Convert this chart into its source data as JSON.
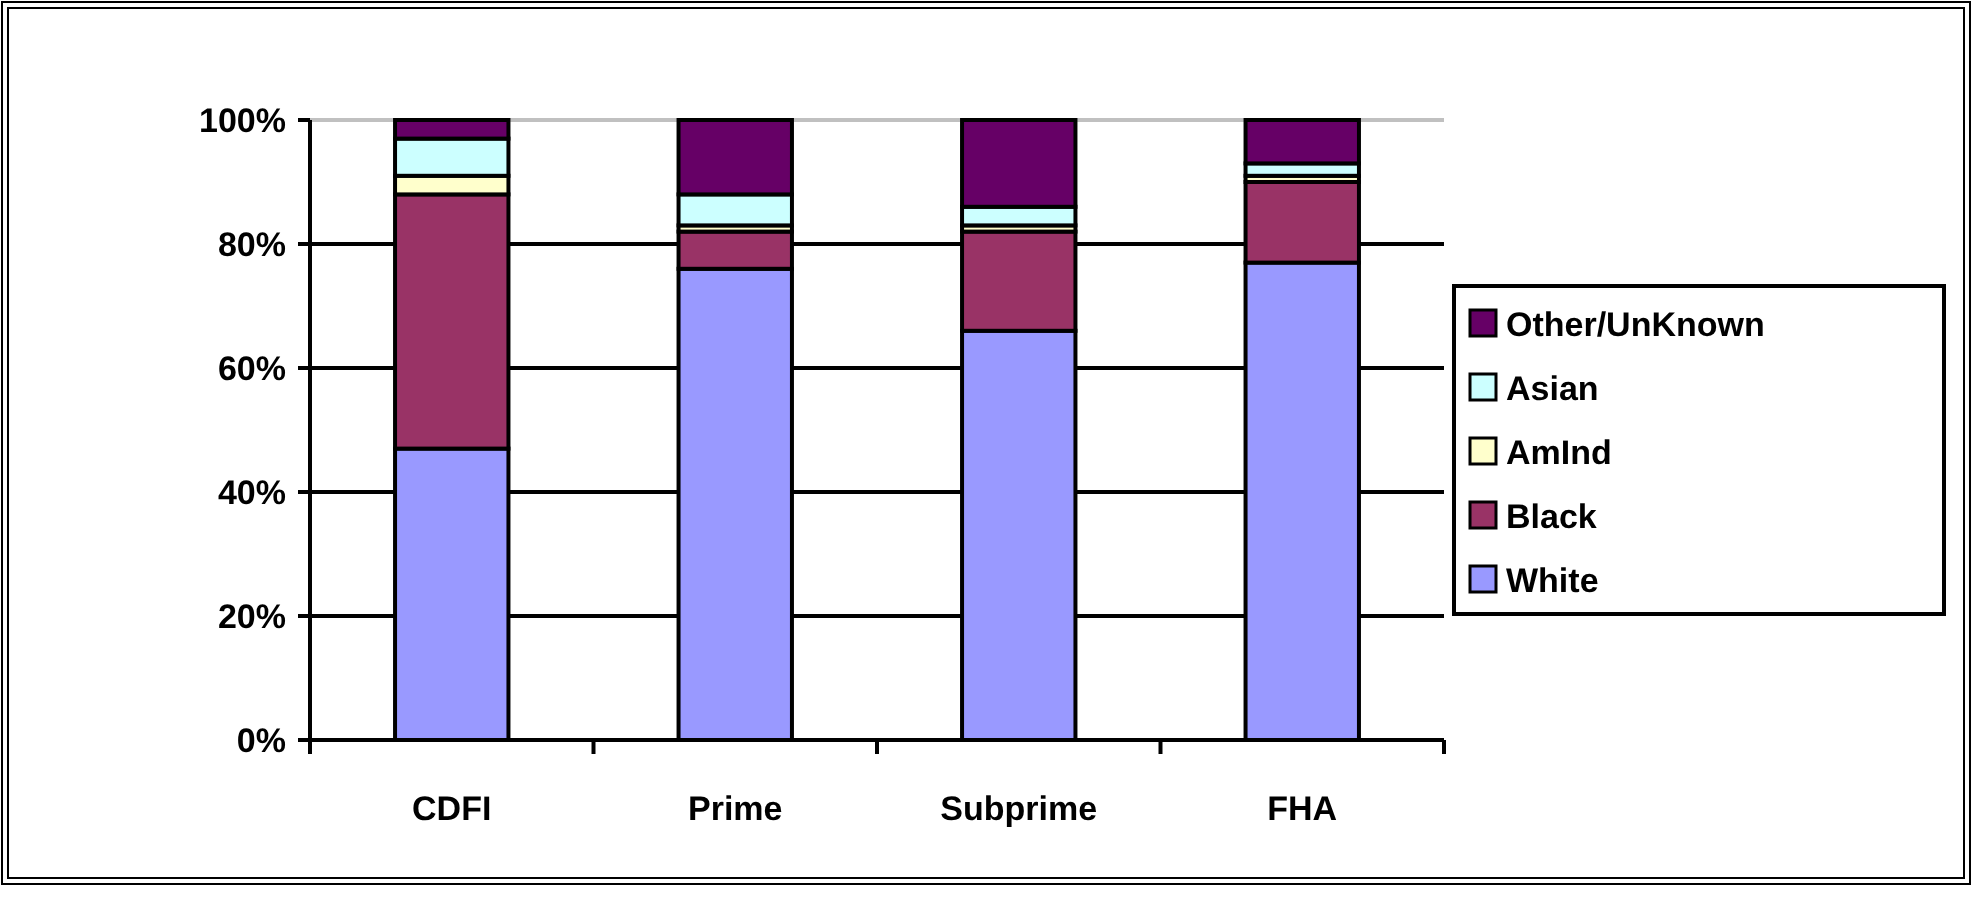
{
  "chart_data": {
    "type": "bar",
    "stacked": true,
    "categories": [
      "CDFI",
      "Prime",
      "Subprime",
      "FHA"
    ],
    "series": [
      {
        "name": "White",
        "color": "#9999ff",
        "values": [
          47,
          76,
          66,
          77
        ]
      },
      {
        "name": "Black",
        "color": "#993366",
        "values": [
          41,
          6,
          16,
          13
        ]
      },
      {
        "name": "AmInd",
        "color": "#ffffcc",
        "values": [
          3,
          1,
          1,
          1
        ]
      },
      {
        "name": "Asian",
        "color": "#ccffff",
        "values": [
          6,
          5,
          3,
          2
        ]
      },
      {
        "name": "Other/UnKnown",
        "color": "#660066",
        "values": [
          3,
          12,
          14,
          7
        ]
      }
    ],
    "ylim": [
      0,
      100
    ],
    "yticks": [
      {
        "value": 0,
        "label": "0%"
      },
      {
        "value": 20,
        "label": "20%"
      },
      {
        "value": 40,
        "label": "40%"
      },
      {
        "value": 60,
        "label": "60%"
      },
      {
        "value": 80,
        "label": "80%"
      },
      {
        "value": 100,
        "label": "100%"
      }
    ],
    "grid": "y",
    "legend": "right"
  }
}
